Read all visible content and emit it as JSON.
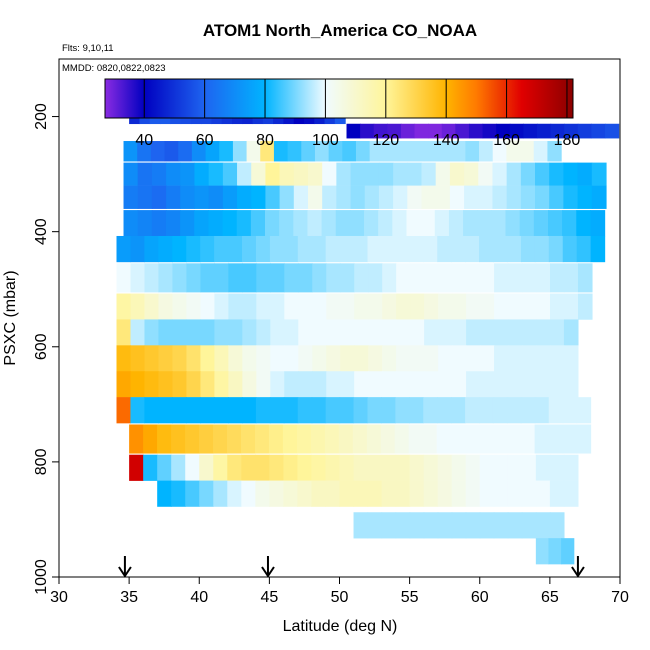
{
  "chart_data": {
    "type": "heatmap",
    "title": "ATOM1 North_America CO_NOAA",
    "annotations": [
      "Flts: 9,10,11",
      "MMDD: 0820,0822,0823"
    ],
    "xlabel": "Latitude (deg N)",
    "ylabel": "PSXC (mbar)",
    "xlim": [
      30,
      70
    ],
    "ylim": [
      1000,
      100
    ],
    "y_reversed": true,
    "x_ticks": [
      30,
      35,
      40,
      45,
      50,
      55,
      60,
      65,
      70
    ],
    "y_ticks": [
      200,
      400,
      600,
      800,
      1000
    ],
    "grid": false,
    "colorbar": {
      "range": [
        27,
        182
      ],
      "ticks": [
        40,
        60,
        80,
        100,
        120,
        140,
        160,
        180
      ],
      "stops": [
        {
          "v": 27,
          "c": "#8a2be2"
        },
        {
          "v": 40,
          "c": "#0000c0"
        },
        {
          "v": 60,
          "c": "#1e64f0"
        },
        {
          "v": 80,
          "c": "#00b4ff"
        },
        {
          "v": 100,
          "c": "#f0fbff"
        },
        {
          "v": 120,
          "c": "#fff59a"
        },
        {
          "v": 140,
          "c": "#ffb400"
        },
        {
          "v": 150,
          "c": "#ff7a00"
        },
        {
          "v": 165,
          "c": "#e00000"
        },
        {
          "v": 182,
          "c": "#8b0000"
        }
      ]
    },
    "flight_arrows_lat": [
      34.7,
      44.9,
      67.0
    ],
    "rows": [
      {
        "p": 200,
        "x0": 35.0,
        "x1": 50.4,
        "v": [
          48,
          55,
          58,
          58,
          56,
          55,
          54,
          54,
          52,
          50,
          48,
          47,
          50,
          52,
          48,
          44,
          40,
          42,
          46,
          52,
          58
        ]
      },
      {
        "p": 225,
        "x0": 50.5,
        "x1": 69.9,
        "v": [
          40,
          36,
          34,
          33,
          30,
          28,
          28,
          30,
          33,
          36,
          38,
          40,
          42,
          44,
          46,
          48,
          50,
          52,
          54,
          56
        ]
      },
      {
        "p": 260,
        "x0": 34.6,
        "x1": 65.8,
        "v": [
          72,
          64,
          60,
          58,
          62,
          70,
          76,
          82,
          92,
          104,
          124,
          82,
          84,
          88,
          92,
          88,
          86,
          90,
          94,
          94,
          94,
          94,
          94,
          94,
          94,
          92,
          96,
          100,
          104,
          104,
          98,
          92
        ]
      },
      {
        "p": 300,
        "x0": 34.6,
        "x1": 69.0,
        "v": [
          70,
          64,
          66,
          70,
          72,
          78,
          82,
          86,
          96,
          108,
          120,
          114,
          112,
          110,
          100,
          94,
          92,
          92,
          92,
          94,
          94,
          96,
          104,
          110,
          108,
          102,
          98,
          94,
          90,
          86,
          82,
          80,
          78,
          82
        ]
      },
      {
        "p": 340,
        "x0": 34.6,
        "x1": 69.0,
        "v": [
          66,
          64,
          62,
          66,
          70,
          72,
          70,
          74,
          78,
          80,
          86,
          92,
          98,
          104,
          96,
          94,
          92,
          94,
          96,
          98,
          102,
          104,
          104,
          100,
          98,
          98,
          96,
          94,
          92,
          90,
          86,
          82,
          80,
          78
        ]
      },
      {
        "p": 385,
        "x0": 34.6,
        "x1": 68.9,
        "v": [
          70,
          68,
          66,
          68,
          72,
          76,
          78,
          80,
          82,
          86,
          90,
          92,
          94,
          96,
          94,
          92,
          92,
          94,
          96,
          98,
          100,
          100,
          98,
          96,
          94,
          94,
          94,
          92,
          90,
          88,
          86,
          84,
          80,
          78
        ]
      },
      {
        "p": 430,
        "x0": 34.1,
        "x1": 68.9,
        "v": [
          74,
          72,
          76,
          78,
          80,
          82,
          84,
          86,
          86,
          88,
          90,
          92,
          92,
          94,
          94,
          96,
          96,
          96,
          98,
          98,
          98,
          98,
          98,
          96,
          96,
          96,
          94,
          94,
          94,
          92,
          92,
          90,
          86,
          84,
          80
        ]
      },
      {
        "p": 480,
        "x0": 34.1,
        "x1": 68.0,
        "v": [
          100,
          98,
          96,
          94,
          92,
          90,
          88,
          88,
          86,
          86,
          88,
          88,
          90,
          90,
          92,
          94,
          94,
          96,
          96,
          98,
          100,
          100,
          100,
          100,
          100,
          100,
          100,
          98,
          98,
          98,
          98,
          96,
          96,
          94
        ]
      },
      {
        "p": 530,
        "x0": 34.1,
        "x1": 68.0,
        "v": [
          118,
          114,
          110,
          106,
          104,
          102,
          100,
          98,
          96,
          96,
          98,
          98,
          100,
          100,
          100,
          102,
          102,
          104,
          104,
          106,
          108,
          108,
          106,
          104,
          104,
          102,
          102,
          100,
          100,
          100,
          100,
          98,
          98,
          96
        ]
      },
      {
        "p": 575,
        "x0": 34.1,
        "x1": 67.0,
        "v": [
          124,
          96,
          92,
          90,
          90,
          90,
          90,
          92,
          92,
          94,
          96,
          98,
          98,
          100,
          100,
          100,
          100,
          100,
          100,
          100,
          100,
          100,
          98,
          98,
          98,
          96,
          96,
          96,
          96,
          96,
          96,
          96,
          94
        ]
      },
      {
        "p": 620,
        "x0": 34.1,
        "x1": 67.0,
        "v": [
          138,
          136,
          134,
          132,
          130,
          126,
          120,
          114,
          108,
          104,
          102,
          100,
          100,
          102,
          104,
          106,
          108,
          108,
          106,
          104,
          102,
          102,
          102,
          100,
          100,
          100,
          100,
          98,
          98,
          98,
          98,
          98,
          98
        ]
      },
      {
        "p": 665,
        "x0": 34.1,
        "x1": 67.0,
        "v": [
          142,
          140,
          138,
          136,
          134,
          130,
          124,
          118,
          112,
          106,
          102,
          98,
          96,
          96,
          96,
          98,
          98,
          100,
          100,
          100,
          100,
          100,
          100,
          100,
          100,
          98,
          98,
          98,
          98,
          98,
          98,
          98,
          98
        ]
      },
      {
        "p": 710,
        "x0": 34.1,
        "x1": 67.9,
        "v": [
          152,
          82,
          80,
          80,
          80,
          80,
          80,
          80,
          80,
          80,
          82,
          82,
          82,
          84,
          84,
          86,
          86,
          88,
          90,
          90,
          92,
          92,
          94,
          94,
          94,
          96,
          96,
          96,
          96,
          96,
          96,
          98,
          98,
          98
        ]
      },
      {
        "p": 760,
        "x0": 35.0,
        "x1": 67.9,
        "v": [
          146,
          142,
          138,
          136,
          134,
          132,
          130,
          128,
          126,
          124,
          122,
          120,
          118,
          116,
          114,
          112,
          110,
          108,
          106,
          104,
          102,
          102,
          100,
          100,
          100,
          100,
          100,
          100,
          100,
          98,
          98,
          98,
          98
        ]
      },
      {
        "p": 810,
        "x0": 35.0,
        "x1": 67.0,
        "v": [
          168,
          82,
          88,
          94,
          100,
          110,
          118,
          124,
          126,
          126,
          124,
          122,
          120,
          118,
          116,
          114,
          112,
          112,
          112,
          112,
          110,
          108,
          106,
          104,
          102,
          100,
          100,
          100,
          100,
          98,
          98,
          98
        ]
      },
      {
        "p": 855,
        "x0": 37.0,
        "x1": 67.0,
        "v": [
          80,
          82,
          86,
          90,
          94,
          98,
          100,
          104,
          106,
          108,
          110,
          112,
          112,
          114,
          114,
          114,
          112,
          112,
          110,
          108,
          106,
          104,
          102,
          100,
          100,
          100,
          100,
          100,
          98,
          98
        ]
      },
      {
        "p": 910,
        "x0": 51.0,
        "x1": 66.0,
        "v": [
          94,
          94,
          94,
          94,
          94,
          94,
          94,
          94,
          94,
          94,
          94,
          94,
          94,
          94,
          94
        ]
      },
      {
        "p": 955,
        "x0": 64.0,
        "x1": 66.7,
        "v": [
          92,
          90,
          88
        ]
      }
    ]
  }
}
